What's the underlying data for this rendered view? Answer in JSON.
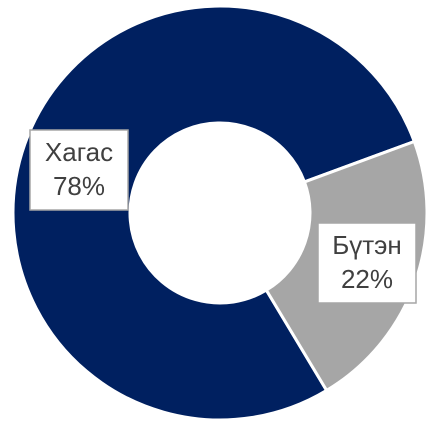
{
  "chart_data": {
    "type": "donut",
    "categories": [
      "Хагас",
      "Бүтэн"
    ],
    "values": [
      78,
      22
    ],
    "value_labels": [
      "78%",
      "22%"
    ],
    "colors": [
      "#002060",
      "#a6a6a6"
    ]
  }
}
